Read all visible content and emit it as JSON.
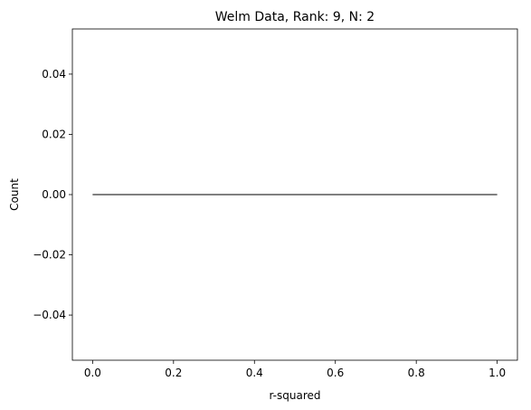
{
  "chart_data": {
    "type": "line",
    "title": "Welm Data, Rank: 9, N: 2",
    "xlabel": "r-squared",
    "ylabel": "Count",
    "xlim": [
      -0.05,
      1.05
    ],
    "ylim": [
      -0.055,
      0.055
    ],
    "x_ticks": [
      0.0,
      0.2,
      0.4,
      0.6,
      0.8,
      1.0
    ],
    "x_tick_labels": [
      "0.0",
      "0.2",
      "0.4",
      "0.6",
      "0.8",
      "1.0"
    ],
    "y_ticks": [
      -0.04,
      -0.02,
      0.0,
      0.02,
      0.04
    ],
    "y_tick_labels": [
      "−0.04",
      "−0.02",
      "0.00",
      "0.02",
      "0.04"
    ],
    "grid": false,
    "series": [
      {
        "x": [
          0.0,
          1.0
        ],
        "y": [
          0.0,
          0.0
        ],
        "color": "#000000"
      }
    ]
  }
}
